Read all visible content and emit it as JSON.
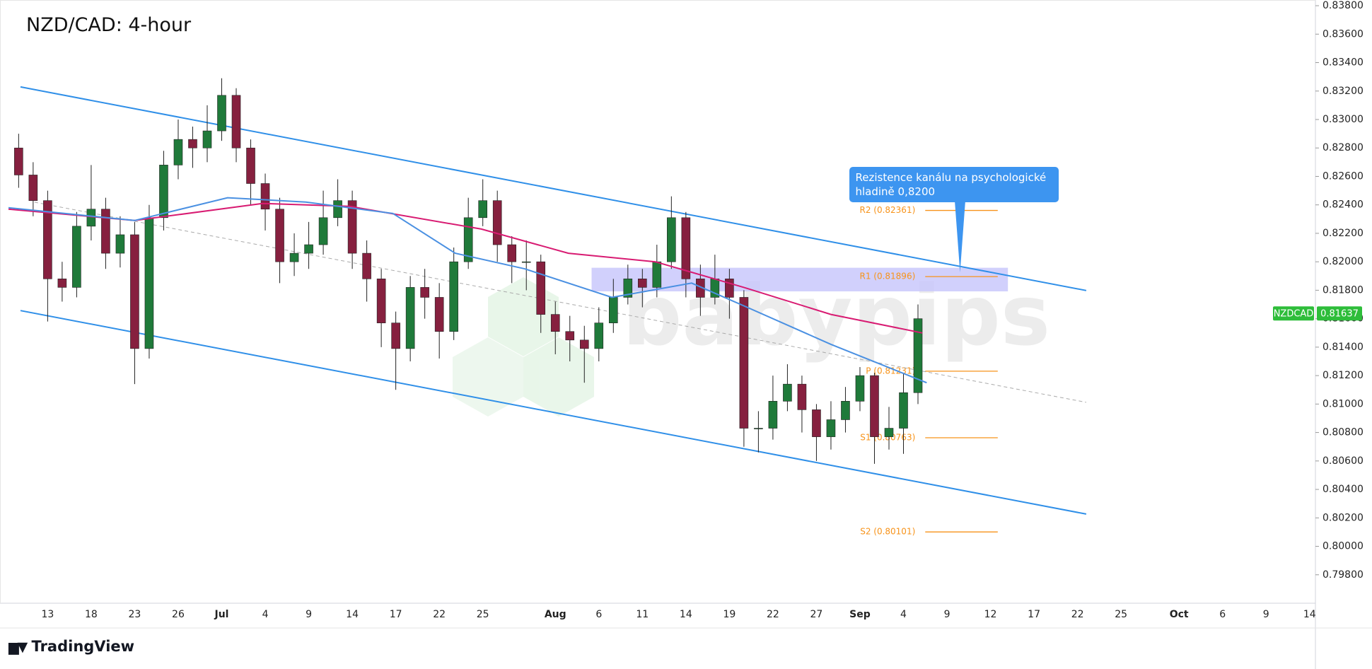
{
  "chart_data": {
    "type": "candlestick",
    "title": "NZD/CAD: 4-hour",
    "symbol": "NZDCAD",
    "last_price": {
      "value": 0.81637,
      "label": "0.81637"
    },
    "last_price_color": "#2ebd3a",
    "watermark": "babypips",
    "up_color": "#1f7a3a",
    "down_color": "#86203f",
    "x": [
      -2,
      -1,
      0,
      1,
      2,
      3,
      4,
      5,
      6,
      7,
      8,
      9,
      10,
      11,
      12,
      13,
      14,
      15,
      16,
      17,
      18,
      19,
      20,
      21,
      22,
      23,
      24,
      25,
      26,
      27,
      28,
      29,
      30,
      31,
      32,
      33,
      34,
      35,
      36,
      37,
      38,
      39,
      40,
      41,
      42,
      43,
      44,
      45,
      46,
      47,
      48,
      49,
      50,
      51,
      52,
      53,
      54,
      55,
      56,
      57,
      58,
      59,
      60
    ],
    "open": [
      0.828,
      0.8261,
      0.8243,
      0.8188,
      0.8182,
      0.8225,
      0.8237,
      0.8206,
      0.8219,
      0.8139,
      0.8231,
      0.8268,
      0.8286,
      0.828,
      0.8292,
      0.8317,
      0.828,
      0.8255,
      0.8237,
      0.82,
      0.8206,
      0.8212,
      0.8231,
      0.8243,
      0.8206,
      0.8188,
      0.8157,
      0.8139,
      0.8182,
      0.8175,
      0.8151,
      0.82,
      0.8231,
      0.8243,
      0.8212,
      0.82,
      0.82,
      0.8163,
      0.8151,
      0.8145,
      0.8139,
      0.8157,
      0.8175,
      0.8188,
      0.8182,
      0.82,
      0.8231,
      0.8188,
      0.8175,
      0.8188,
      0.8175,
      0.8083,
      0.8083,
      0.8102,
      0.8114,
      0.8096,
      0.8077,
      0.8089,
      0.8102,
      0.812,
      0.8077,
      0.8083,
      0.8108
    ],
    "high": [
      0.829,
      0.827,
      0.825,
      0.82,
      0.8235,
      0.8268,
      0.8245,
      0.8232,
      0.8228,
      0.824,
      0.8278,
      0.83,
      0.8295,
      0.831,
      0.8329,
      0.8322,
      0.8286,
      0.8262,
      0.8245,
      0.822,
      0.8228,
      0.825,
      0.8258,
      0.825,
      0.8215,
      0.8195,
      0.8165,
      0.819,
      0.8195,
      0.8185,
      0.821,
      0.8245,
      0.8258,
      0.825,
      0.8218,
      0.8215,
      0.8205,
      0.8172,
      0.8162,
      0.8155,
      0.8168,
      0.8188,
      0.8198,
      0.8195,
      0.8212,
      0.8246,
      0.8235,
      0.8198,
      0.8205,
      0.8195,
      0.818,
      0.8095,
      0.812,
      0.8128,
      0.812,
      0.81,
      0.8102,
      0.8112,
      0.8126,
      0.8122,
      0.8098,
      0.8122,
      0.817
    ],
    "low": [
      0.8252,
      0.8232,
      0.8158,
      0.8172,
      0.8175,
      0.8215,
      0.8195,
      0.8196,
      0.8114,
      0.8132,
      0.8222,
      0.8258,
      0.8266,
      0.827,
      0.8285,
      0.827,
      0.824,
      0.8222,
      0.8185,
      0.819,
      0.8195,
      0.8205,
      0.8225,
      0.8195,
      0.8172,
      0.814,
      0.811,
      0.813,
      0.816,
      0.8132,
      0.8145,
      0.8195,
      0.8225,
      0.82,
      0.8185,
      0.818,
      0.815,
      0.8135,
      0.813,
      0.8115,
      0.813,
      0.815,
      0.817,
      0.8168,
      0.8175,
      0.8195,
      0.8175,
      0.8162,
      0.817,
      0.816,
      0.807,
      0.8066,
      0.8075,
      0.8095,
      0.808,
      0.806,
      0.8068,
      0.808,
      0.8095,
      0.8058,
      0.8068,
      0.8065,
      0.81
    ],
    "close": [
      0.8261,
      0.8243,
      0.8188,
      0.8182,
      0.8225,
      0.8237,
      0.8206,
      0.8219,
      0.8139,
      0.8231,
      0.8268,
      0.8286,
      0.828,
      0.8292,
      0.8317,
      0.828,
      0.8255,
      0.8237,
      0.82,
      0.8206,
      0.8212,
      0.8231,
      0.8243,
      0.8206,
      0.8188,
      0.8157,
      0.8139,
      0.8182,
      0.8175,
      0.8151,
      0.82,
      0.8231,
      0.8243,
      0.8212,
      0.82,
      0.82,
      0.8163,
      0.8151,
      0.8145,
      0.8139,
      0.8157,
      0.8175,
      0.8188,
      0.8182,
      0.82,
      0.8231,
      0.8188,
      0.8175,
      0.8188,
      0.8175,
      0.8083,
      0.8083,
      0.8102,
      0.8114,
      0.8096,
      0.8077,
      0.8089,
      0.8102,
      0.812,
      0.8077,
      0.8083,
      0.8108,
      0.816
    ],
    "moving_averages": [
      {
        "color": "#d81b72",
        "x": [
          -2.7,
          6,
          14.8,
          20.8,
          29.9,
          35.9,
          41.9,
          48,
          54,
          60.3
        ],
        "values": [
          0.8237,
          0.8229,
          0.8241,
          0.8239,
          0.8223,
          0.8206,
          0.82,
          0.8182,
          0.8163,
          0.815
        ]
      },
      {
        "color": "#4a90e2",
        "x": [
          -2.7,
          6,
          12.4,
          17.8,
          23.8,
          28.1,
          32.9,
          38.9,
          44.4,
          48,
          54,
          60.6
        ],
        "values": [
          0.8238,
          0.8229,
          0.8245,
          0.8242,
          0.8234,
          0.8206,
          0.8195,
          0.8175,
          0.8185,
          0.8169,
          0.8142,
          0.8115
        ]
      }
    ],
    "trendlines": [
      {
        "color": "#2f8fe8",
        "dashed": false,
        "x": [
          -1.87,
          71.6
        ],
        "values": [
          0.83229,
          0.81798
        ]
      },
      {
        "color": "#2f8fe8",
        "dashed": false,
        "x": [
          -1.87,
          71.6
        ],
        "values": [
          0.81657,
          0.80227
        ]
      },
      {
        "color": "#aaaaaa",
        "dashed": true,
        "x": [
          -0.9,
          71.6
        ],
        "values": [
          0.82419,
          0.81012
        ]
      }
    ],
    "zone": {
      "color": "#c9c8fb",
      "x": [
        37.5,
        66.2
      ],
      "values": [
        0.81958,
        0.81792
      ]
    },
    "pivot_color": "#f7931a",
    "pivot_x": [
      60.5,
      65.5
    ],
    "pivots": [
      {
        "label": "R2 (0.82361)",
        "value": 0.82361
      },
      {
        "label": "R1 (0.81896)",
        "value": 0.81896
      },
      {
        "label": "P (0.81231)",
        "value": 0.81231
      },
      {
        "label": "S1 (0.80763)",
        "value": 0.80763
      },
      {
        "label": "S2 (0.80101)",
        "value": 0.80101
      }
    ],
    "annotation": "Rezistence kanálu na psychologické hladině 0,8200",
    "annotation_target": {
      "x": 62.9,
      "value": 0.81926
    },
    "annotation_color": "#3d95f0",
    "xlim": [
      -2.7,
      87.4
    ],
    "xticks": [
      {
        "value": 0,
        "label": "13"
      },
      {
        "value": 3,
        "label": "18"
      },
      {
        "value": 6,
        "label": "23"
      },
      {
        "value": 9,
        "label": "26"
      },
      {
        "value": 12,
        "label": "Jul"
      },
      {
        "value": 15,
        "label": "4"
      },
      {
        "value": 18,
        "label": "9"
      },
      {
        "value": 21,
        "label": "14"
      },
      {
        "value": 24,
        "label": "17"
      },
      {
        "value": 27,
        "label": "22"
      },
      {
        "value": 30,
        "label": "25"
      },
      {
        "value": 35,
        "label": "Aug"
      },
      {
        "value": 38,
        "label": "6"
      },
      {
        "value": 41,
        "label": "11"
      },
      {
        "value": 44,
        "label": "14"
      },
      {
        "value": 47,
        "label": "19"
      },
      {
        "value": 50,
        "label": "22"
      },
      {
        "value": 53,
        "label": "27"
      },
      {
        "value": 56,
        "label": "Sep"
      },
      {
        "value": 59,
        "label": "4"
      },
      {
        "value": 62,
        "label": "9"
      },
      {
        "value": 65,
        "label": "12"
      },
      {
        "value": 68,
        "label": "17"
      },
      {
        "value": 71,
        "label": "22"
      },
      {
        "value": 74,
        "label": "25"
      },
      {
        "value": 78,
        "label": "Oct"
      },
      {
        "value": 81,
        "label": "6"
      },
      {
        "value": 84,
        "label": "9"
      },
      {
        "value": 87,
        "label": "14"
      }
    ],
    "ylim": [
      0.796,
      0.8384
    ],
    "yticks": [
      {
        "value": 0.798,
        "label": "0.79800"
      },
      {
        "value": 0.8,
        "label": "0.80000"
      },
      {
        "value": 0.802,
        "label": "0.80200"
      },
      {
        "value": 0.804,
        "label": "0.80400"
      },
      {
        "value": 0.806,
        "label": "0.80600"
      },
      {
        "value": 0.808,
        "label": "0.80800"
      },
      {
        "value": 0.81,
        "label": "0.81000"
      },
      {
        "value": 0.812,
        "label": "0.81200"
      },
      {
        "value": 0.814,
        "label": "0.81400"
      },
      {
        "value": 0.816,
        "label": "0.81600"
      },
      {
        "value": 0.818,
        "label": "0.81800"
      },
      {
        "value": 0.82,
        "label": "0.82000"
      },
      {
        "value": 0.822,
        "label": "0.82200"
      },
      {
        "value": 0.824,
        "label": "0.82400"
      },
      {
        "value": 0.826,
        "label": "0.82600"
      },
      {
        "value": 0.828,
        "label": "0.82800"
      },
      {
        "value": 0.83,
        "label": "0.83000"
      },
      {
        "value": 0.832,
        "label": "0.83200"
      },
      {
        "value": 0.834,
        "label": "0.83400"
      },
      {
        "value": 0.836,
        "label": "0.83600"
      },
      {
        "value": 0.838,
        "label": "0.83800"
      }
    ]
  },
  "footer": {
    "logo": "TradingView"
  }
}
